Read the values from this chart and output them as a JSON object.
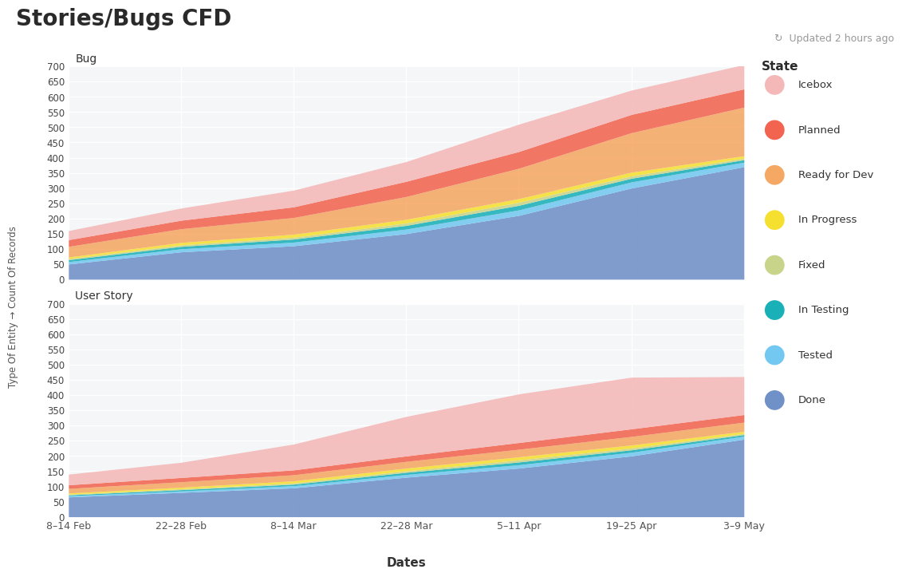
{
  "title": "Stories/Bugs CFD",
  "updated_text": "Updated 2 hours ago",
  "ylabel": "Type Of Entity → Count Of Records",
  "xlabel": "Dates",
  "dates": [
    "8–14 Feb",
    "22–28 Feb",
    "8–14 Mar",
    "22–28 Mar",
    "5–11 Apr",
    "19–25 Apr",
    "3–9 May"
  ],
  "legend_title": "State",
  "states_legend": [
    "Icebox",
    "Planned",
    "Ready for Dev",
    "In Progress",
    "Fixed",
    "In Testing",
    "Tested",
    "Done"
  ],
  "colors": {
    "Icebox": "#f5b8b8",
    "Planned": "#f26450",
    "Ready for Dev": "#f5a864",
    "In Progress": "#f5e030",
    "Fixed": "#c8d48a",
    "In Testing": "#1ab0b8",
    "Tested": "#72c8f0",
    "Done": "#7090c8"
  },
  "bug_data": {
    "Done": [
      50,
      90,
      110,
      150,
      210,
      300,
      370
    ],
    "Tested": [
      8,
      10,
      12,
      15,
      18,
      20,
      15
    ],
    "In Testing": [
      6,
      8,
      10,
      12,
      15,
      12,
      8
    ],
    "Fixed": [
      4,
      5,
      6,
      8,
      10,
      8,
      5
    ],
    "In Progress": [
      5,
      8,
      10,
      12,
      12,
      12,
      8
    ],
    "Ready for Dev": [
      35,
      45,
      55,
      75,
      100,
      130,
      160
    ],
    "Planned": [
      22,
      28,
      35,
      50,
      55,
      60,
      60
    ],
    "Icebox": [
      30,
      40,
      55,
      65,
      90,
      80,
      80
    ]
  },
  "story_data": {
    "Done": [
      65,
      80,
      95,
      130,
      160,
      200,
      255
    ],
    "Tested": [
      4,
      5,
      7,
      9,
      11,
      12,
      10
    ],
    "In Testing": [
      3,
      4,
      5,
      7,
      9,
      8,
      5
    ],
    "Fixed": [
      2,
      3,
      4,
      5,
      7,
      6,
      4
    ],
    "In Progress": [
      4,
      5,
      7,
      9,
      10,
      10,
      7
    ],
    "Ready for Dev": [
      15,
      18,
      20,
      22,
      25,
      28,
      30
    ],
    "Planned": [
      12,
      14,
      16,
      18,
      22,
      25,
      25
    ],
    "Icebox": [
      35,
      50,
      85,
      130,
      160,
      170,
      125
    ]
  },
  "bug_yticks": [
    0,
    50,
    100,
    150,
    200,
    250,
    300,
    350,
    400,
    450,
    500,
    550,
    600,
    650,
    700
  ],
  "story_yticks": [
    0,
    50,
    100,
    150,
    200,
    250,
    300,
    350,
    400,
    450,
    500,
    550,
    600,
    650,
    700
  ],
  "background_color": "#ffffff",
  "plot_bg_color": "#f4f6f8"
}
